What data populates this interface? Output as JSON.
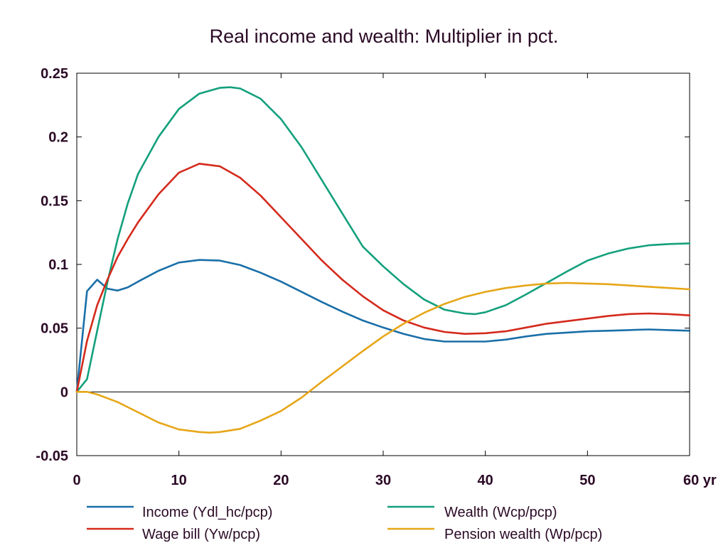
{
  "chart_data": {
    "type": "line",
    "title": "Real income and wealth: Multiplier in pct.",
    "xlabel": "",
    "ylabel": "",
    "xlim": [
      0,
      60
    ],
    "ylim": [
      -0.05,
      0.25
    ],
    "x_ticks": [
      0,
      10,
      20,
      30,
      40,
      50,
      60
    ],
    "x_tick_labels": [
      "0",
      "10",
      "20",
      "30",
      "40",
      "50",
      "60 yr"
    ],
    "y_ticks": [
      -0.05,
      0,
      0.05,
      0.1,
      0.15,
      0.2,
      0.25
    ],
    "y_tick_labels": [
      "-0.05",
      "0",
      "0.05",
      "0.1",
      "0.15",
      "0.2",
      "0.25"
    ],
    "grid": false,
    "zero_line": true,
    "legend_position": "bottom",
    "series": [
      {
        "name": "Income (Ydl_hc/pcp)",
        "color": "#1a6fa8",
        "x": [
          0,
          1,
          2,
          3,
          4,
          5,
          6,
          8,
          10,
          12,
          14,
          16,
          18,
          20,
          22,
          24,
          26,
          28,
          30,
          32,
          34,
          36,
          38,
          40,
          42,
          44,
          46,
          48,
          50,
          52,
          54,
          56,
          58,
          60
        ],
        "y": [
          0,
          0.079,
          0.088,
          0.081,
          0.0795,
          0.082,
          0.0865,
          0.095,
          0.1015,
          0.1035,
          0.103,
          0.0995,
          0.0935,
          0.0865,
          0.0785,
          0.0705,
          0.063,
          0.056,
          0.0505,
          0.0455,
          0.0415,
          0.0395,
          0.0395,
          0.0395,
          0.041,
          0.0435,
          0.0455,
          0.0465,
          0.0475,
          0.048,
          0.0485,
          0.049,
          0.0485,
          0.048
        ]
      },
      {
        "name": "Wealth (Wcp/pcp)",
        "color": "#13a07c",
        "x": [
          0,
          1,
          2,
          3,
          4,
          5,
          6,
          8,
          10,
          12,
          14,
          15,
          16,
          18,
          20,
          22,
          24,
          26,
          28,
          30,
          32,
          34,
          36,
          38,
          39,
          40,
          42,
          44,
          46,
          48,
          50,
          52,
          54,
          56,
          58,
          60
        ],
        "y": [
          0,
          0.01,
          0.048,
          0.086,
          0.12,
          0.148,
          0.171,
          0.2,
          0.222,
          0.234,
          0.2385,
          0.239,
          0.238,
          0.23,
          0.214,
          0.192,
          0.166,
          0.14,
          0.114,
          0.0985,
          0.0845,
          0.0725,
          0.0645,
          0.0615,
          0.061,
          0.0625,
          0.068,
          0.0765,
          0.0855,
          0.0945,
          0.103,
          0.1085,
          0.1125,
          0.115,
          0.116,
          0.1165
        ]
      },
      {
        "name": "Wage bill (Yw/pcp)",
        "color": "#d42a1c",
        "x": [
          0,
          1,
          2,
          3,
          4,
          5,
          6,
          8,
          10,
          12,
          14,
          16,
          18,
          20,
          22,
          24,
          26,
          28,
          30,
          32,
          34,
          36,
          38,
          40,
          42,
          44,
          46,
          48,
          50,
          52,
          54,
          56,
          58,
          60
        ],
        "y": [
          0,
          0.04,
          0.068,
          0.088,
          0.106,
          0.12,
          0.133,
          0.155,
          0.172,
          0.179,
          0.177,
          0.168,
          0.154,
          0.137,
          0.12,
          0.103,
          0.088,
          0.075,
          0.064,
          0.056,
          0.0505,
          0.047,
          0.0455,
          0.046,
          0.0475,
          0.0505,
          0.0535,
          0.0555,
          0.0575,
          0.0595,
          0.061,
          0.0615,
          0.061,
          0.06
        ]
      },
      {
        "name": "Pension wealth (Wp/pcp)",
        "color": "#e6a617",
        "x": [
          0,
          1,
          2,
          3,
          4,
          5,
          6,
          8,
          10,
          12,
          13,
          14,
          16,
          18,
          20,
          22,
          24,
          26,
          28,
          30,
          32,
          34,
          36,
          38,
          40,
          42,
          44,
          46,
          48,
          50,
          52,
          54,
          56,
          58,
          60
        ],
        "y": [
          0,
          0,
          -0.002,
          -0.005,
          -0.008,
          -0.012,
          -0.016,
          -0.024,
          -0.0295,
          -0.0315,
          -0.032,
          -0.0315,
          -0.029,
          -0.0225,
          -0.015,
          -0.0045,
          0.008,
          0.02,
          0.032,
          0.0435,
          0.0535,
          0.062,
          0.069,
          0.0745,
          0.0785,
          0.0815,
          0.0835,
          0.085,
          0.0855,
          0.085,
          0.0845,
          0.0835,
          0.0825,
          0.0815,
          0.0805
        ]
      }
    ]
  }
}
